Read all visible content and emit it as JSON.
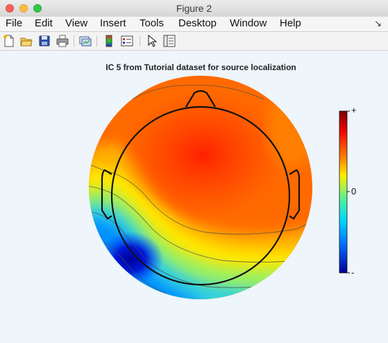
{
  "window": {
    "title": "Figure 2"
  },
  "menubar": {
    "items": [
      "File",
      "Edit",
      "View",
      "Insert",
      "Tools",
      "Desktop",
      "Window",
      "Help"
    ]
  },
  "toolbar": {
    "icons": [
      "new-figure-icon",
      "open-file-icon",
      "save-icon",
      "print-icon",
      "link-plot-icon",
      "insert-colorbar-icon",
      "insert-legend-icon",
      "pointer-icon",
      "property-editor-icon"
    ]
  },
  "figure": {
    "title": "IC 5 from Tutorial dataset for source localization",
    "colorbar": {
      "max_label": "+",
      "mid_label": "0",
      "min_label": "-"
    },
    "colors": {
      "background": "#eef5fb"
    }
  }
}
